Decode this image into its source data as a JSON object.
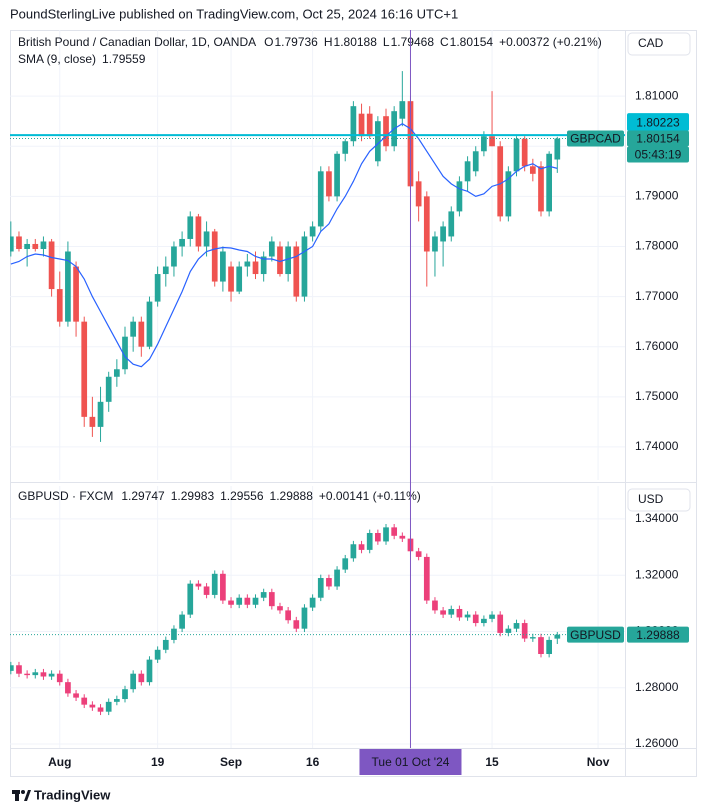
{
  "header": {
    "text": "PoundSterlingLive published on TradingView.com, Oct 25, 2024 16:16 UTC+1"
  },
  "footer": {
    "brand": "TradingView"
  },
  "chart_data": [
    {
      "type": "candlestick",
      "title": "British Pound / Canadian Dollar, 1D, OANDA",
      "ohlc_labels": [
        "O",
        "H",
        "L",
        "C"
      ],
      "change": "+0.00372 (+0.21%)",
      "currency": "CAD",
      "symbol": "GBPCAD",
      "countdown": "05:43:19",
      "up_color": "#26a69a",
      "down_color": "#ef5350",
      "open": [
        1.779,
        1.782,
        1.7795,
        1.7805,
        1.7795,
        1.781,
        1.7715,
        1.765,
        1.776,
        1.765,
        1.746,
        1.744,
        1.749,
        1.754,
        1.7555,
        1.762,
        1.765,
        1.76,
        1.769,
        1.7745,
        1.776,
        1.78,
        1.7815,
        1.786,
        1.78,
        1.783,
        1.773,
        1.776,
        1.771,
        1.776,
        1.777,
        1.7745,
        1.778,
        1.78,
        1.7745,
        1.78,
        1.77,
        1.782,
        1.784,
        1.795,
        1.79,
        1.7985,
        1.801,
        1.8065,
        1.8065,
        1.797,
        1.806,
        1.8,
        1.8055,
        1.809,
        1.793,
        1.79,
        1.779,
        1.781,
        1.782,
        1.787,
        1.793,
        1.795,
        1.799,
        1.802,
        1.8,
        1.786,
        1.795,
        1.8015,
        1.796,
        1.796,
        1.787,
        1.79736
      ],
      "high": [
        1.785,
        1.783,
        1.7815,
        1.7815,
        1.782,
        1.7815,
        1.775,
        1.781,
        1.777,
        1.766,
        1.75,
        1.752,
        1.755,
        1.7575,
        1.764,
        1.766,
        1.766,
        1.77,
        1.776,
        1.778,
        1.781,
        1.783,
        1.787,
        1.7865,
        1.785,
        1.7835,
        1.78,
        1.777,
        1.777,
        1.7785,
        1.779,
        1.779,
        1.782,
        1.781,
        1.781,
        1.781,
        1.783,
        1.785,
        1.796,
        1.796,
        1.799,
        1.8015,
        1.809,
        1.8085,
        1.808,
        1.806,
        1.8075,
        1.808,
        1.815,
        1.81,
        1.795,
        1.791,
        1.783,
        1.785,
        1.788,
        1.794,
        1.798,
        1.8,
        1.803,
        1.811,
        1.801,
        1.796,
        1.802,
        1.802,
        1.7975,
        1.797,
        1.799,
        1.80188
      ],
      "low": [
        1.778,
        1.779,
        1.776,
        1.779,
        1.778,
        1.77,
        1.764,
        1.764,
        1.762,
        1.744,
        1.742,
        1.741,
        1.747,
        1.752,
        1.7545,
        1.759,
        1.758,
        1.7595,
        1.768,
        1.772,
        1.774,
        1.778,
        1.78,
        1.779,
        1.778,
        1.772,
        1.771,
        1.769,
        1.7705,
        1.774,
        1.7735,
        1.773,
        1.777,
        1.774,
        1.773,
        1.769,
        1.769,
        1.781,
        1.783,
        1.789,
        1.789,
        1.797,
        1.8,
        1.801,
        1.8015,
        1.796,
        1.799,
        1.799,
        1.804,
        1.791,
        1.785,
        1.772,
        1.774,
        1.776,
        1.781,
        1.786,
        1.791,
        1.794,
        1.798,
        1.8,
        1.785,
        1.785,
        1.794,
        1.795,
        1.793,
        1.786,
        1.786,
        1.79468
      ],
      "close": [
        1.782,
        1.7795,
        1.7805,
        1.7795,
        1.781,
        1.7715,
        1.765,
        1.779,
        1.765,
        1.746,
        1.744,
        1.749,
        1.754,
        1.7555,
        1.762,
        1.765,
        1.76,
        1.769,
        1.7745,
        1.776,
        1.78,
        1.7815,
        1.786,
        1.78,
        1.783,
        1.773,
        1.779,
        1.771,
        1.776,
        1.777,
        1.7745,
        1.778,
        1.781,
        1.7745,
        1.78,
        1.77,
        1.782,
        1.784,
        1.795,
        1.79,
        1.7985,
        1.801,
        1.808,
        1.802,
        1.802,
        1.805,
        1.8,
        1.807,
        1.809,
        1.792,
        1.788,
        1.779,
        1.782,
        1.784,
        1.787,
        1.793,
        1.797,
        1.799,
        1.802,
        1.8,
        1.786,
        1.795,
        1.8015,
        1.796,
        1.7945,
        1.787,
        1.7985,
        1.80154
      ],
      "sma": {
        "name": "SMA (9, close)",
        "color": "#2962ff",
        "values": [
          1.7765,
          1.777,
          1.778,
          1.7785,
          1.7783,
          1.7778,
          1.7775,
          1.7772,
          1.776,
          1.7735,
          1.77,
          1.767,
          1.764,
          1.761,
          1.758,
          1.7565,
          1.756,
          1.7575,
          1.7605,
          1.764,
          1.7675,
          1.771,
          1.775,
          1.7775,
          1.779,
          1.7795,
          1.7798,
          1.7797,
          1.7793,
          1.779,
          1.778,
          1.7775,
          1.7775,
          1.777,
          1.7775,
          1.778,
          1.779,
          1.78,
          1.783,
          1.7845,
          1.7875,
          1.79,
          1.793,
          1.7965,
          1.799,
          1.8005,
          1.802,
          1.8035,
          1.8045,
          1.8035,
          1.8015,
          1.799,
          1.7965,
          1.794,
          1.7925,
          1.7915,
          1.791,
          1.79,
          1.7905,
          1.792,
          1.7925,
          1.7935,
          1.795,
          1.796,
          1.7965,
          1.7955,
          1.796,
          1.79559
        ]
      },
      "price_line": {
        "value": 1.80223,
        "color": "#00bcd4"
      },
      "xlim": [
        -0.1,
        75.3
      ],
      "ylim": [
        1.7334,
        1.8232
      ],
      "yticks": [
        {
          "value": 1.81,
          "label": "1.81000"
        },
        {
          "value": 1.8,
          "label": "1.80000"
        },
        {
          "value": 1.79,
          "label": "1.79000"
        },
        {
          "value": 1.78,
          "label": "1.78000"
        },
        {
          "value": 1.77,
          "label": "1.77000"
        },
        {
          "value": 1.76,
          "label": "1.76000"
        },
        {
          "value": 1.75,
          "label": "1.75000"
        },
        {
          "value": 1.74,
          "label": "1.74000"
        }
      ],
      "grid": true
    },
    {
      "type": "candlestick",
      "title": "GBPUSD · FXCM",
      "change": "+0.00141 (+0.11%)",
      "currency": "USD",
      "symbol": "GBPUSD",
      "up_color": "#26a69a",
      "down_color": "#ec407a",
      "open": [
        1.286,
        1.288,
        1.285,
        1.2845,
        1.2855,
        1.284,
        1.285,
        1.282,
        1.278,
        1.2765,
        1.274,
        1.273,
        1.2715,
        1.275,
        1.276,
        1.2795,
        1.285,
        1.282,
        1.29,
        1.2935,
        1.297,
        1.301,
        1.306,
        1.317,
        1.316,
        1.313,
        1.3205,
        1.311,
        1.3095,
        1.312,
        1.3095,
        1.312,
        1.314,
        1.309,
        1.3075,
        1.304,
        1.301,
        1.3085,
        1.312,
        1.319,
        1.316,
        1.322,
        1.326,
        1.331,
        1.329,
        1.335,
        1.332,
        1.337,
        1.334,
        1.333,
        1.3285,
        1.3265,
        1.311,
        1.3075,
        1.306,
        1.308,
        1.305,
        1.306,
        1.303,
        1.3045,
        1.306,
        1.2995,
        1.301,
        1.303,
        1.2975,
        1.298,
        1.292,
        1.29747
      ],
      "high": [
        1.2892,
        1.2892,
        1.2862,
        1.2867,
        1.2867,
        1.2862,
        1.2862,
        1.2832,
        1.2792,
        1.2777,
        1.2752,
        1.2742,
        1.2762,
        1.2772,
        1.2807,
        1.2862,
        1.2862,
        1.2912,
        1.2947,
        1.2982,
        1.3022,
        1.3072,
        1.3182,
        1.3182,
        1.3172,
        1.3217,
        1.3217,
        1.3122,
        1.3132,
        1.3132,
        1.3132,
        1.3152,
        1.3152,
        1.3102,
        1.3087,
        1.3052,
        1.3097,
        1.3132,
        1.3202,
        1.3202,
        1.3232,
        1.3272,
        1.3322,
        1.3322,
        1.3362,
        1.3362,
        1.3382,
        1.3382,
        1.3352,
        1.3342,
        1.3297,
        1.3277,
        1.3122,
        1.3087,
        1.3092,
        1.3092,
        1.3072,
        1.3072,
        1.3057,
        1.3072,
        1.3072,
        1.3022,
        1.3042,
        1.3042,
        1.2992,
        1.2992,
        1.2982,
        1.29983
      ],
      "low": [
        1.2848,
        1.2838,
        1.2833,
        1.2833,
        1.2828,
        1.2828,
        1.2808,
        1.2768,
        1.2753,
        1.2728,
        1.2718,
        1.2703,
        1.2703,
        1.2738,
        1.2748,
        1.2783,
        1.2808,
        1.2808,
        1.2888,
        1.2923,
        1.2958,
        1.2998,
        1.3048,
        1.3148,
        1.3118,
        1.3118,
        1.3098,
        1.3083,
        1.3083,
        1.3083,
        1.3083,
        1.3108,
        1.3078,
        1.3063,
        1.3028,
        1.2998,
        1.2998,
        1.3073,
        1.3108,
        1.3148,
        1.3148,
        1.3208,
        1.3248,
        1.3278,
        1.3278,
        1.3308,
        1.3308,
        1.3328,
        1.3318,
        1.3273,
        1.3253,
        1.3098,
        1.3063,
        1.3048,
        1.3048,
        1.3038,
        1.3038,
        1.3018,
        1.3018,
        1.3033,
        1.2983,
        1.2983,
        1.2998,
        1.2963,
        1.2963,
        1.2908,
        1.2908,
        1.29556
      ],
      "close": [
        1.288,
        1.285,
        1.2845,
        1.2855,
        1.284,
        1.285,
        1.282,
        1.278,
        1.2765,
        1.274,
        1.273,
        1.2715,
        1.275,
        1.276,
        1.2795,
        1.285,
        1.282,
        1.29,
        1.2935,
        1.297,
        1.301,
        1.306,
        1.317,
        1.316,
        1.313,
        1.3205,
        1.311,
        1.3095,
        1.312,
        1.3095,
        1.312,
        1.314,
        1.309,
        1.3075,
        1.304,
        1.301,
        1.3085,
        1.312,
        1.319,
        1.316,
        1.322,
        1.326,
        1.331,
        1.329,
        1.335,
        1.332,
        1.337,
        1.334,
        1.333,
        1.3285,
        1.3265,
        1.311,
        1.3075,
        1.306,
        1.308,
        1.305,
        1.306,
        1.303,
        1.3045,
        1.306,
        1.2995,
        1.301,
        1.303,
        1.2975,
        1.298,
        1.292,
        1.297,
        1.29888
      ],
      "xlim": [
        -0.1,
        75.3
      ],
      "ylim": [
        1.2586,
        1.3517
      ],
      "yticks": [
        {
          "value": 1.34,
          "label": "1.34000"
        },
        {
          "value": 1.32,
          "label": "1.32000"
        },
        {
          "value": 1.3,
          "label": "1.30000"
        },
        {
          "value": 1.28,
          "label": "1.28000"
        },
        {
          "value": 1.26,
          "label": "1.26000"
        }
      ],
      "xticks": [
        {
          "value": 6,
          "label": "Aug"
        },
        {
          "value": 18,
          "label": "19"
        },
        {
          "value": 27,
          "label": "Sep"
        },
        {
          "value": 37,
          "label": "16"
        },
        {
          "value": 59,
          "label": "15"
        },
        {
          "value": 72,
          "label": "Nov"
        }
      ],
      "crosshair": {
        "x": 49,
        "label": "Tue 01 Oct '24",
        "color": "#7e57c2"
      },
      "grid": true
    }
  ]
}
